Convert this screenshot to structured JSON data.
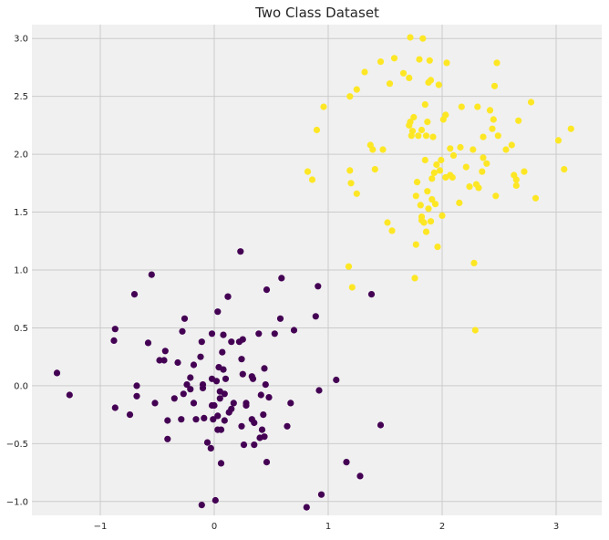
{
  "chart_data": {
    "type": "scatter",
    "title": "Two Class Dataset",
    "xlabel": "",
    "ylabel": "",
    "xlim": [
      -1.6,
      3.4
    ],
    "ylim": [
      -1.12,
      3.12
    ],
    "xticks": [
      -1,
      0,
      1,
      2,
      3
    ],
    "yticks": [
      -1.0,
      -0.5,
      0.0,
      0.5,
      1.0,
      1.5,
      2.0,
      2.5,
      3.0
    ],
    "xtick_labels": [
      "−1",
      "0",
      "1",
      "2",
      "3"
    ],
    "ytick_labels": [
      "−1.0",
      "−0.5",
      "0.0",
      "0.5",
      "1.0",
      "1.5",
      "2.0",
      "2.5",
      "3.0"
    ],
    "grid": true,
    "colors": {
      "background": "#f0f0f0",
      "grid": "#cbcbcb",
      "class_0": "#440154",
      "class_1": "#fde725"
    },
    "series": [
      {
        "class": 0,
        "color": "#440154",
        "points": [
          [
            -1.38,
            0.11
          ],
          [
            -1.27,
            -0.08
          ],
          [
            -0.87,
            0.49
          ],
          [
            -0.88,
            0.39
          ],
          [
            -0.87,
            -0.19
          ],
          [
            -0.74,
            -0.25
          ],
          [
            -0.7,
            0.79
          ],
          [
            -0.68,
            -0.09
          ],
          [
            -0.68,
            0.0
          ],
          [
            -0.58,
            0.37
          ],
          [
            -0.55,
            0.96
          ],
          [
            -0.52,
            -0.15
          ],
          [
            -0.48,
            0.22
          ],
          [
            -0.44,
            0.22
          ],
          [
            -0.43,
            0.3
          ],
          [
            -0.41,
            -0.46
          ],
          [
            -0.41,
            -0.3
          ],
          [
            -0.35,
            -0.11
          ],
          [
            -0.32,
            0.2
          ],
          [
            -0.29,
            -0.29
          ],
          [
            -0.28,
            0.47
          ],
          [
            -0.26,
            0.58
          ],
          [
            -0.27,
            -0.07
          ],
          [
            -0.24,
            0.01
          ],
          [
            -0.21,
            -0.03
          ],
          [
            -0.21,
            0.07
          ],
          [
            -0.18,
            0.18
          ],
          [
            -0.18,
            -0.15
          ],
          [
            -0.16,
            -0.29
          ],
          [
            -0.12,
            0.25
          ],
          [
            -0.1,
            0.01
          ],
          [
            -0.1,
            -0.02
          ],
          [
            -0.09,
            -0.28
          ],
          [
            -0.11,
            0.38
          ],
          [
            -0.11,
            -1.03
          ],
          [
            -0.06,
            -0.49
          ],
          [
            -0.03,
            -0.54
          ],
          [
            -0.02,
            0.45
          ],
          [
            -0.02,
            0.06
          ],
          [
            -0.01,
            -0.29
          ],
          [
            0.0,
            -0.17
          ],
          [
            0.01,
            -0.99
          ],
          [
            0.02,
            0.04
          ],
          [
            0.03,
            0.64
          ],
          [
            0.03,
            -0.26
          ],
          [
            0.03,
            -0.38
          ],
          [
            0.04,
            0.16
          ],
          [
            0.05,
            -0.11
          ],
          [
            0.05,
            -0.05
          ],
          [
            0.06,
            -0.38
          ],
          [
            0.06,
            -0.67
          ],
          [
            0.07,
            0.29
          ],
          [
            0.08,
            0.14
          ],
          [
            0.08,
            0.44
          ],
          [
            0.09,
            -0.07
          ],
          [
            0.09,
            -0.3
          ],
          [
            0.1,
            0.06
          ],
          [
            0.12,
            0.77
          ],
          [
            0.13,
            -0.23
          ],
          [
            0.15,
            -0.2
          ],
          [
            0.17,
            -0.15
          ],
          [
            0.22,
            0.38
          ],
          [
            0.23,
            1.16
          ],
          [
            0.24,
            0.23
          ],
          [
            0.24,
            -0.35
          ],
          [
            0.25,
            0.4
          ],
          [
            0.25,
            0.1
          ],
          [
            0.26,
            -0.51
          ],
          [
            0.28,
            -0.17
          ],
          [
            0.28,
            -0.15
          ],
          [
            0.33,
            0.08
          ],
          [
            0.33,
            -0.29
          ],
          [
            0.34,
            0.06
          ],
          [
            0.35,
            -0.32
          ],
          [
            0.35,
            -0.51
          ],
          [
            0.39,
            0.45
          ],
          [
            0.4,
            -0.45
          ],
          [
            0.41,
            -0.08
          ],
          [
            0.42,
            -0.38
          ],
          [
            0.43,
            -0.25
          ],
          [
            0.44,
            0.15
          ],
          [
            0.45,
            0.01
          ],
          [
            0.44,
            -0.44
          ],
          [
            0.46,
            0.83
          ],
          [
            0.46,
            -0.66
          ],
          [
            0.48,
            -0.1
          ],
          [
            0.53,
            0.45
          ],
          [
            0.58,
            0.58
          ],
          [
            0.59,
            0.93
          ],
          [
            0.64,
            -0.35
          ],
          [
            0.67,
            -0.15
          ],
          [
            0.7,
            0.48
          ],
          [
            0.81,
            -1.05
          ],
          [
            0.89,
            0.6
          ],
          [
            0.91,
            0.86
          ],
          [
            0.92,
            -0.04
          ],
          [
            0.94,
            -0.94
          ],
          [
            1.07,
            0.05
          ],
          [
            1.16,
            -0.66
          ],
          [
            1.28,
            -0.78
          ],
          [
            1.38,
            0.79
          ],
          [
            1.46,
            -0.34
          ],
          [
            0.12,
            0.77
          ],
          [
            -0.02,
            -0.17
          ],
          [
            0.15,
            0.38
          ]
        ]
      },
      {
        "class": 1,
        "color": "#fde725",
        "points": [
          [
            0.82,
            1.85
          ],
          [
            0.86,
            1.78
          ],
          [
            0.9,
            2.21
          ],
          [
            0.96,
            2.41
          ],
          [
            1.18,
            1.03
          ],
          [
            1.19,
            2.5
          ],
          [
            1.19,
            1.86
          ],
          [
            1.2,
            1.75
          ],
          [
            1.21,
            0.85
          ],
          [
            1.25,
            2.56
          ],
          [
            1.25,
            1.66
          ],
          [
            1.32,
            2.71
          ],
          [
            1.37,
            2.08
          ],
          [
            1.39,
            2.04
          ],
          [
            1.41,
            1.87
          ],
          [
            1.46,
            2.8
          ],
          [
            1.48,
            2.04
          ],
          [
            1.52,
            1.41
          ],
          [
            1.54,
            2.61
          ],
          [
            1.56,
            1.34
          ],
          [
            1.58,
            2.83
          ],
          [
            1.66,
            2.7
          ],
          [
            1.71,
            2.66
          ],
          [
            1.71,
            2.25
          ],
          [
            1.72,
            2.28
          ],
          [
            1.72,
            3.01
          ],
          [
            1.73,
            2.16
          ],
          [
            1.74,
            2.2
          ],
          [
            1.75,
            2.32
          ],
          [
            1.76,
            0.93
          ],
          [
            1.77,
            1.22
          ],
          [
            1.77,
            1.64
          ],
          [
            1.78,
            1.76
          ],
          [
            1.79,
            2.16
          ],
          [
            1.8,
            2.82
          ],
          [
            1.81,
            1.56
          ],
          [
            1.82,
            2.21
          ],
          [
            1.82,
            1.46
          ],
          [
            1.82,
            1.43
          ],
          [
            1.83,
            3.0
          ],
          [
            1.84,
            1.41
          ],
          [
            1.85,
            2.43
          ],
          [
            1.85,
            1.95
          ],
          [
            1.86,
            1.33
          ],
          [
            1.86,
            2.16
          ],
          [
            1.87,
            2.28
          ],
          [
            1.87,
            1.68
          ],
          [
            1.88,
            2.62
          ],
          [
            1.88,
            1.53
          ],
          [
            1.89,
            2.81
          ],
          [
            1.9,
            1.42
          ],
          [
            1.9,
            2.64
          ],
          [
            1.91,
            1.61
          ],
          [
            1.91,
            1.79
          ],
          [
            1.92,
            2.15
          ],
          [
            1.93,
            1.84
          ],
          [
            1.94,
            1.57
          ],
          [
            1.95,
            1.91
          ],
          [
            1.96,
            1.2
          ],
          [
            1.97,
            2.6
          ],
          [
            1.98,
            1.86
          ],
          [
            1.99,
            1.95
          ],
          [
            2.0,
            1.47
          ],
          [
            2.01,
            2.3
          ],
          [
            2.03,
            1.8
          ],
          [
            2.03,
            2.34
          ],
          [
            2.04,
            2.79
          ],
          [
            2.07,
            1.82
          ],
          [
            2.07,
            2.05
          ],
          [
            2.09,
            1.8
          ],
          [
            2.1,
            1.99
          ],
          [
            2.15,
            1.58
          ],
          [
            2.16,
            2.06
          ],
          [
            2.17,
            2.41
          ],
          [
            2.21,
            1.89
          ],
          [
            2.24,
            1.72
          ],
          [
            2.27,
            2.04
          ],
          [
            2.28,
            1.06
          ],
          [
            2.29,
            0.48
          ],
          [
            2.3,
            1.74
          ],
          [
            2.31,
            2.41
          ],
          [
            2.32,
            1.71
          ],
          [
            2.35,
            1.85
          ],
          [
            2.36,
            2.15
          ],
          [
            2.36,
            1.97
          ],
          [
            2.39,
            1.92
          ],
          [
            2.42,
            2.38
          ],
          [
            2.44,
            2.22
          ],
          [
            2.45,
            2.3
          ],
          [
            2.46,
            2.59
          ],
          [
            2.47,
            1.64
          ],
          [
            2.48,
            2.79
          ],
          [
            2.49,
            2.16
          ],
          [
            2.56,
            2.04
          ],
          [
            2.61,
            2.08
          ],
          [
            2.63,
            1.82
          ],
          [
            2.65,
            1.73
          ],
          [
            2.65,
            1.78
          ],
          [
            2.67,
            2.29
          ],
          [
            2.72,
            1.85
          ],
          [
            2.78,
            2.45
          ],
          [
            2.82,
            1.62
          ],
          [
            3.02,
            2.12
          ],
          [
            3.07,
            1.87
          ],
          [
            3.13,
            2.22
          ]
        ]
      }
    ]
  }
}
